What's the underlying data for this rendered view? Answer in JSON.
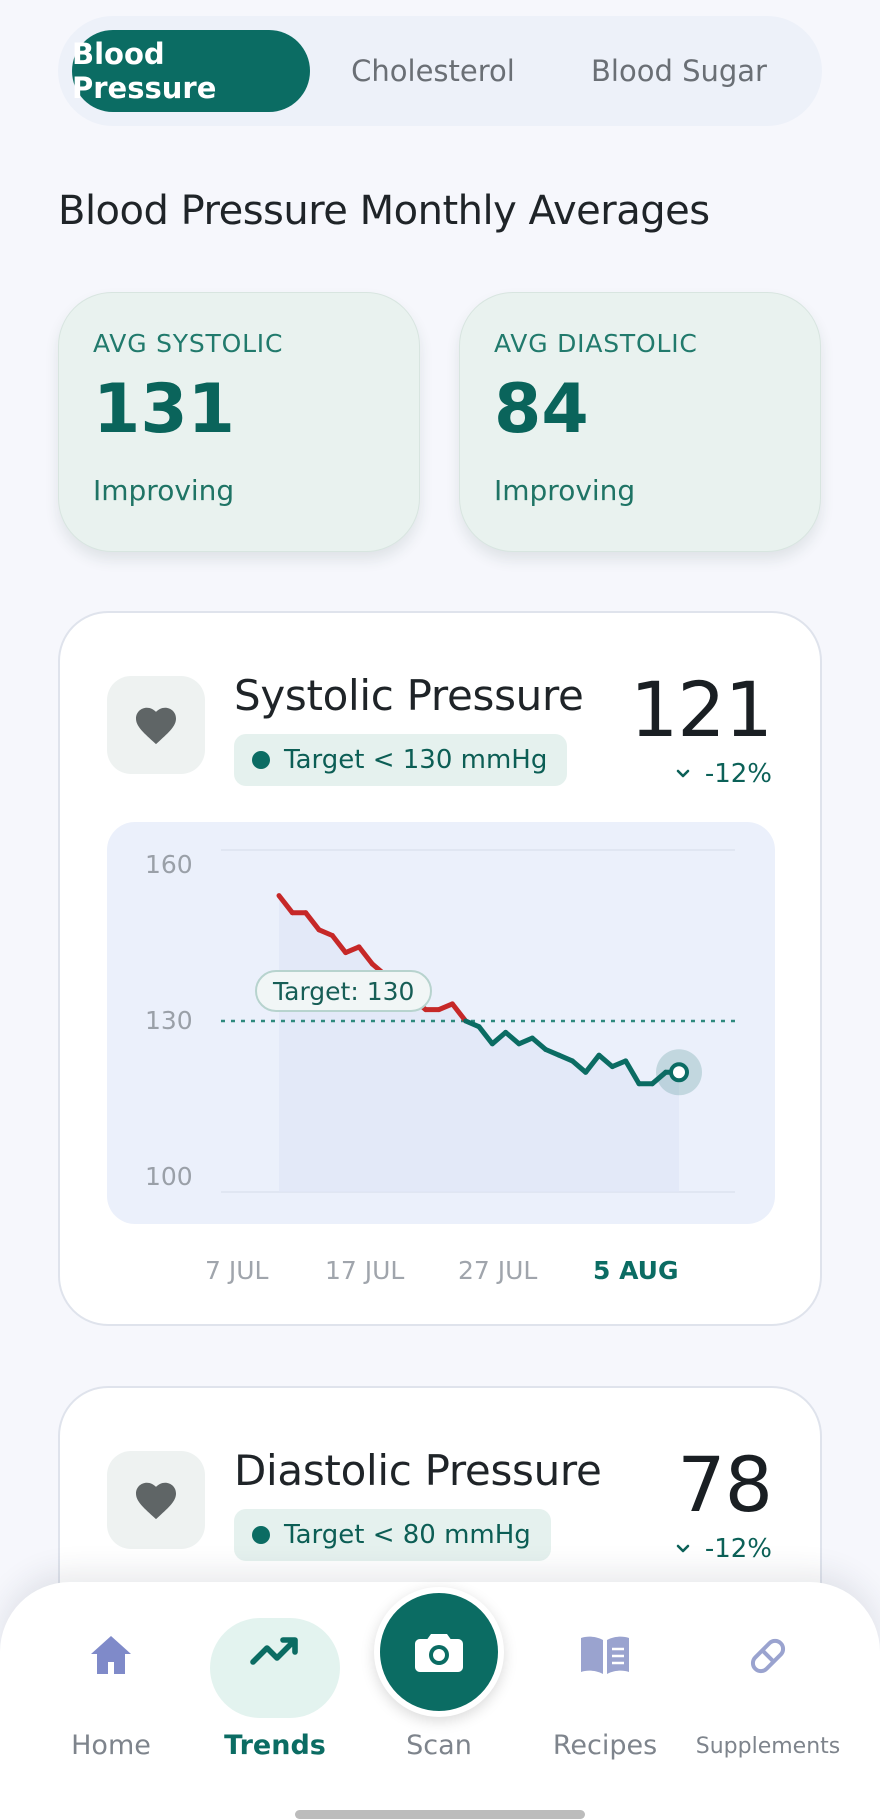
{
  "tabs": [
    {
      "label": "Blood Pressure",
      "active": true
    },
    {
      "label": "Cholesterol",
      "active": false
    },
    {
      "label": "Blood Sugar",
      "active": false
    }
  ],
  "page_title": "Blood Pressure Monthly Averages",
  "summary": {
    "systolic": {
      "label": "AVG SYSTOLIC",
      "value": "131",
      "status": "Improving"
    },
    "diastolic": {
      "label": "AVG DIASTOLIC",
      "value": "84",
      "status": "Improving"
    }
  },
  "systolic_card": {
    "icon": "heart-icon",
    "title": "Systolic Pressure",
    "target": "Target < 130 mmHg",
    "value": "121",
    "change": "-12%",
    "change_icon": "chevron-down-icon",
    "target_label": "Target: 130",
    "x_labels": [
      "7 JUL",
      "17 JUL",
      "27 JUL",
      "5 AUG"
    ],
    "y_labels": [
      "160",
      "130",
      "100"
    ]
  },
  "diastolic_card": {
    "icon": "heart-icon",
    "title": "Diastolic Pressure",
    "target": "Target < 80 mmHg",
    "value": "78",
    "change": "-12%",
    "change_icon": "chevron-down-icon"
  },
  "chart_data": {
    "type": "line",
    "ylim": [
      100,
      160
    ],
    "target": 130,
    "x": [
      1,
      2,
      3,
      4,
      5,
      6,
      7,
      8,
      9,
      10,
      11,
      12,
      13,
      14,
      15,
      16,
      17,
      18,
      19,
      20,
      21,
      22,
      23,
      24,
      25,
      26,
      27,
      28,
      29,
      30,
      31
    ],
    "values": [
      152,
      149,
      149,
      146,
      145,
      142,
      143,
      140,
      138,
      137,
      134,
      132,
      132,
      133,
      130,
      129,
      126,
      128,
      126,
      127,
      125,
      124,
      123,
      121,
      124,
      122,
      123,
      119,
      119,
      121,
      121
    ],
    "x_ticks": [
      "7 JUL",
      "17 JUL",
      "27 JUL",
      "5 AUG"
    ],
    "y_ticks": [
      "160",
      "130",
      "100"
    ],
    "colors": {
      "above_target": "#c62828",
      "below_target": "#0b6c63"
    }
  },
  "nav": [
    {
      "label": "Home",
      "icon": "home-icon",
      "active": false
    },
    {
      "label": "Trends",
      "icon": "trending-up-icon",
      "active": true
    },
    {
      "label": "Scan",
      "icon": "camera-icon",
      "active": false
    },
    {
      "label": "Recipes",
      "icon": "book-icon",
      "active": false
    },
    {
      "label": "Supplements",
      "icon": "pill-icon",
      "active": false
    }
  ]
}
